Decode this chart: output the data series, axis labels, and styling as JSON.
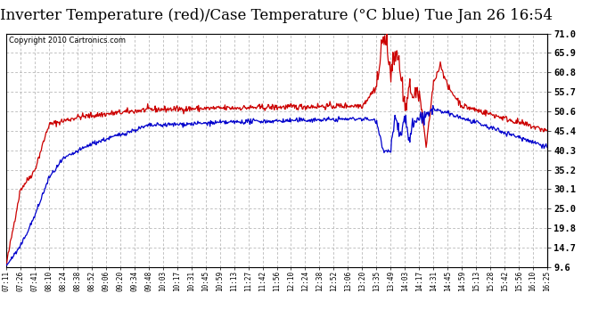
{
  "title": "Inverter Temperature (red)/Case Temperature (°C blue) Tue Jan 26 16:54",
  "copyright": "Copyright 2010 Cartronics.com",
  "yticks": [
    9.6,
    14.7,
    19.8,
    25.0,
    30.1,
    35.2,
    40.3,
    45.4,
    50.6,
    55.7,
    60.8,
    65.9,
    71.0
  ],
  "ylim": [
    9.6,
    71.0
  ],
  "xtick_labels": [
    "07:11",
    "07:26",
    "07:41",
    "08:10",
    "08:24",
    "08:38",
    "08:52",
    "09:06",
    "09:20",
    "09:34",
    "09:48",
    "10:03",
    "10:17",
    "10:31",
    "10:45",
    "10:59",
    "11:13",
    "11:27",
    "11:42",
    "11:56",
    "12:10",
    "12:24",
    "12:38",
    "12:52",
    "13:06",
    "13:20",
    "13:35",
    "13:49",
    "14:03",
    "14:17",
    "14:31",
    "14:45",
    "14:59",
    "15:13",
    "15:28",
    "15:42",
    "15:56",
    "16:10",
    "16:25"
  ],
  "bg_color": "#ffffff",
  "plot_bg": "#ffffff",
  "grid_color": "#aaaaaa",
  "red_color": "#cc0000",
  "blue_color": "#0000cc",
  "title_fontsize": 12,
  "copyright_fontsize": 6
}
